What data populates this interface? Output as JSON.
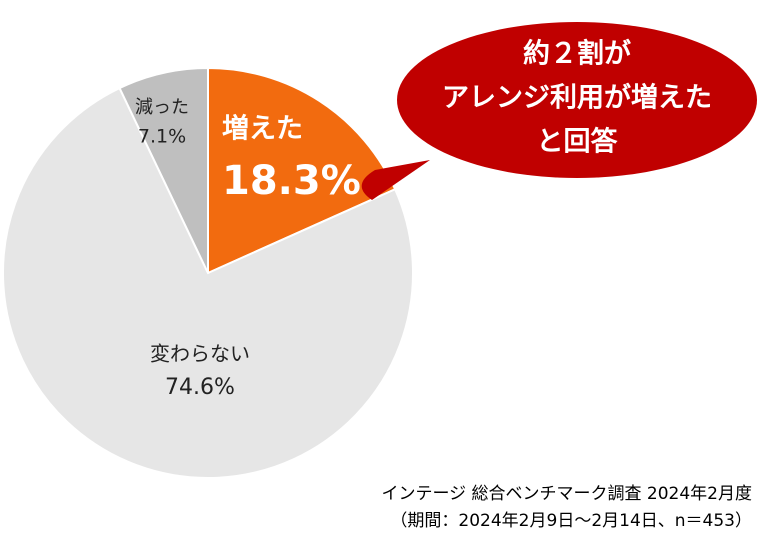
{
  "chart_data": {
    "type": "pie",
    "categories": [
      "増えた",
      "変わらない",
      "減った"
    ],
    "values": [
      18.3,
      74.6,
      7.1
    ],
    "value_labels": [
      "18.3%",
      "74.6%",
      "7.1%"
    ],
    "colors": [
      "#f26b0f",
      "#e6e6e6",
      "#bfbfbf"
    ],
    "annotation": [
      "約２割が",
      "アレンジ利用が増えた",
      "と回答"
    ],
    "source": [
      "インテージ 総合ベンチマーク調査 2024年2月度",
      "（期間：2024年2月9日～2月14日、n＝453）"
    ]
  }
}
